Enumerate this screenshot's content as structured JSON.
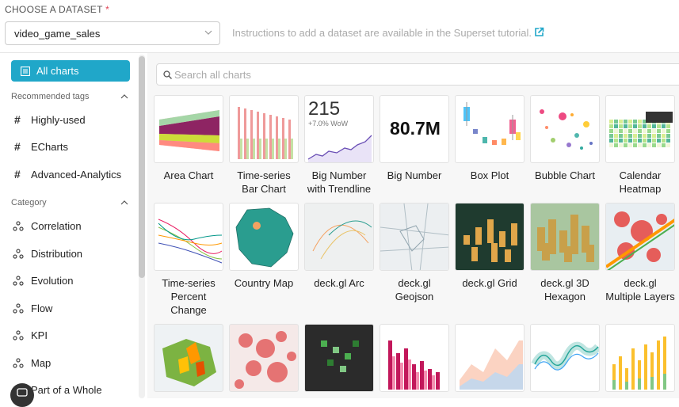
{
  "dataset": {
    "label": "CHOOSE A DATASET",
    "required_mark": "*",
    "selected": "video_game_sales",
    "help_text": "Instructions to add a dataset are available in the Superset tutorial."
  },
  "sidebar": {
    "all_charts": "All charts",
    "recommended_title": "Recommended tags",
    "tags": [
      "Highly-used",
      "ECharts",
      "Advanced-Analytics"
    ],
    "category_title": "Category",
    "categories": [
      "Correlation",
      "Distribution",
      "Evolution",
      "Flow",
      "KPI",
      "Map",
      "Part of a Whole"
    ]
  },
  "search": {
    "placeholder": "Search all charts"
  },
  "charts": [
    {
      "name": "Area Chart",
      "icon": "area-chart-thumb"
    },
    {
      "name": "Time-series Bar Chart",
      "icon": "bar-chart-thumb"
    },
    {
      "name": "Big Number with Trendline",
      "icon": "trendline-thumb",
      "value": "215",
      "sub": "+7.0% WoW"
    },
    {
      "name": "Big Number",
      "icon": "big-number-thumb",
      "value": "80.7M"
    },
    {
      "name": "Box Plot",
      "icon": "box-plot-thumb"
    },
    {
      "name": "Bubble Chart",
      "icon": "bubble-chart-thumb"
    },
    {
      "name": "Calendar Heatmap",
      "icon": "calendar-heatmap-thumb"
    },
    {
      "name": "Time-series Percent Change",
      "icon": "percent-change-thumb"
    },
    {
      "name": "Country Map",
      "icon": "country-map-thumb"
    },
    {
      "name": "deck.gl Arc",
      "icon": "arc-map-thumb"
    },
    {
      "name": "deck.gl Geojson",
      "icon": "geojson-thumb"
    },
    {
      "name": "deck.gl Grid",
      "icon": "grid-3d-thumb"
    },
    {
      "name": "deck.gl 3D Hexagon",
      "icon": "hexagon-3d-thumb"
    },
    {
      "name": "deck.gl Multiple Layers",
      "icon": "multi-layer-map-thumb"
    }
  ],
  "colors": {
    "accent": "#20a7c9",
    "required": "#e04355"
  }
}
